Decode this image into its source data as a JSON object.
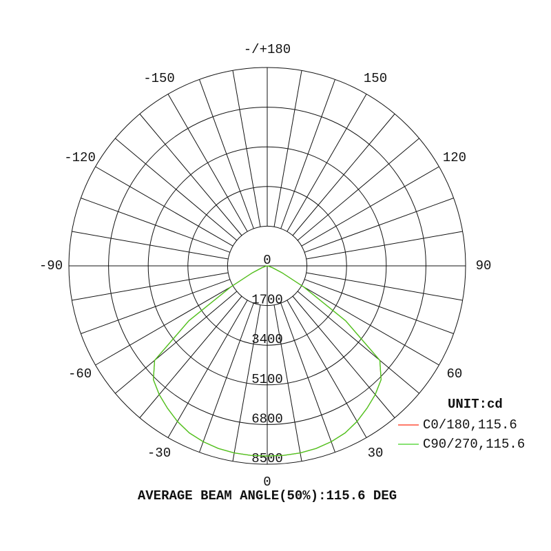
{
  "chart_data": {
    "type": "polar",
    "theta": [
      -90,
      -85,
      -80,
      -75,
      -70,
      -65,
      -60,
      -55,
      -50,
      -45,
      -40,
      -35,
      -30,
      -25,
      -20,
      -15,
      -10,
      -5,
      0,
      5,
      10,
      15,
      20,
      25,
      30,
      35,
      40,
      45,
      50,
      55,
      60,
      65,
      70,
      75,
      80,
      85,
      90
    ],
    "series": [
      {
        "name": "C0/180,115.6",
        "color": "#ff2a10",
        "values": [
          0,
          0,
          20,
          80,
          250,
          700,
          1800,
          4100,
          6300,
          6900,
          7200,
          7450,
          7700,
          7900,
          8020,
          8100,
          8140,
          8150,
          8150,
          8150,
          8140,
          8100,
          8020,
          7900,
          7700,
          7450,
          7200,
          6900,
          6300,
          4100,
          1800,
          700,
          250,
          80,
          20,
          0,
          0
        ]
      },
      {
        "name": "C90/270,115.6",
        "color": "#40d020",
        "values": [
          0,
          0,
          20,
          80,
          250,
          700,
          1800,
          4100,
          6300,
          6900,
          7200,
          7450,
          7700,
          7900,
          8020,
          8100,
          8140,
          8150,
          8150,
          8150,
          8140,
          8100,
          8020,
          7900,
          7700,
          7450,
          7200,
          6900,
          6300,
          4100,
          1800,
          700,
          250,
          80,
          20,
          0,
          0
        ]
      }
    ],
    "rlim": [
      0,
      8500
    ],
    "rticks": [
      0,
      1700,
      3400,
      5100,
      6800,
      8500
    ],
    "thetaticks": [
      0,
      30,
      60,
      90,
      120,
      150,
      {
        "value": 180,
        "label": "-/+180"
      },
      -150,
      -120,
      -90,
      -60,
      -30
    ],
    "unit_label": "UNIT:cd",
    "footer": "AVERAGE BEAM ANGLE(50%):115.6 DEG"
  }
}
